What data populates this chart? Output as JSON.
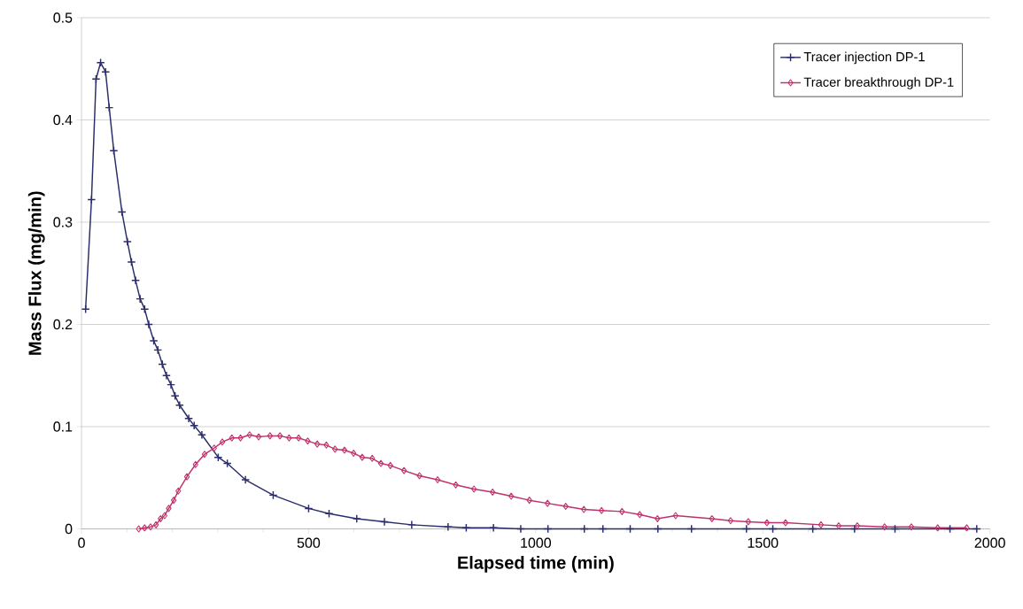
{
  "chart_data": {
    "type": "line",
    "xlabel": "Elapsed time (min)",
    "ylabel": "Mass Flux (mg/min)",
    "xlim": [
      0,
      2000
    ],
    "ylim": [
      0,
      0.5
    ],
    "xticks": [
      0,
      500,
      1000,
      1500,
      2000
    ],
    "yticks": [
      0,
      0.1,
      0.2,
      0.3,
      0.4,
      0.5
    ],
    "grid": "y",
    "legend": "top right",
    "line_style": "solid",
    "series": [
      {
        "name": "Tracer injection DP-1",
        "color": "#2b2d6b",
        "marker": "cross",
        "x": [
          9,
          22,
          32,
          42,
          53,
          61,
          71,
          89,
          101,
          110,
          119,
          129,
          139,
          148,
          159,
          168,
          178,
          187,
          197,
          206,
          216,
          236,
          248,
          265,
          301,
          321,
          361,
          422,
          500,
          545,
          606,
          667,
          727,
          807,
          847,
          907,
          967,
          1027,
          1107,
          1148,
          1208,
          1269,
          1343,
          1464,
          1522,
          1610,
          1702,
          1791,
          1912,
          1971
        ],
        "values": [
          0.215,
          0.322,
          0.44,
          0.456,
          0.447,
          0.412,
          0.37,
          0.31,
          0.281,
          0.261,
          0.243,
          0.225,
          0.215,
          0.2,
          0.184,
          0.175,
          0.161,
          0.15,
          0.141,
          0.13,
          0.121,
          0.108,
          0.101,
          0.092,
          0.07,
          0.064,
          0.048,
          0.033,
          0.02,
          0.015,
          0.01,
          0.007,
          0.004,
          0.002,
          0.001,
          0.001,
          0,
          0,
          0,
          0,
          0,
          0,
          0,
          0,
          0,
          0,
          0,
          0,
          0,
          0
        ]
      },
      {
        "name": "Tracer breakthrough DP-1",
        "color": "#c0306a",
        "marker": "diamond",
        "x": [
          126,
          139,
          152,
          164,
          174,
          183,
          192,
          203,
          213,
          232,
          251,
          271,
          292,
          310,
          331,
          350,
          370,
          390,
          415,
          437,
          457,
          478,
          498,
          519,
          539,
          558,
          579,
          599,
          618,
          640,
          659,
          680,
          710,
          744,
          784,
          824,
          864,
          905,
          946,
          986,
          1026,
          1066,
          1106,
          1145,
          1190,
          1229,
          1268,
          1308,
          1388,
          1429,
          1468,
          1509,
          1550,
          1628,
          1667,
          1708,
          1768,
          1827,
          1885,
          1949
        ],
        "values": [
          0.0,
          0.001,
          0.002,
          0.004,
          0.01,
          0.013,
          0.02,
          0.028,
          0.037,
          0.051,
          0.063,
          0.073,
          0.079,
          0.085,
          0.089,
          0.089,
          0.092,
          0.09,
          0.091,
          0.091,
          0.089,
          0.089,
          0.086,
          0.083,
          0.082,
          0.078,
          0.077,
          0.074,
          0.07,
          0.069,
          0.064,
          0.062,
          0.057,
          0.052,
          0.048,
          0.043,
          0.039,
          0.036,
          0.032,
          0.028,
          0.025,
          0.022,
          0.019,
          0.018,
          0.017,
          0.014,
          0.01,
          0.013,
          0.01,
          0.008,
          0.007,
          0.006,
          0.006,
          0.004,
          0.003,
          0.003,
          0.002,
          0.002,
          0.001,
          0.001
        ]
      }
    ]
  }
}
